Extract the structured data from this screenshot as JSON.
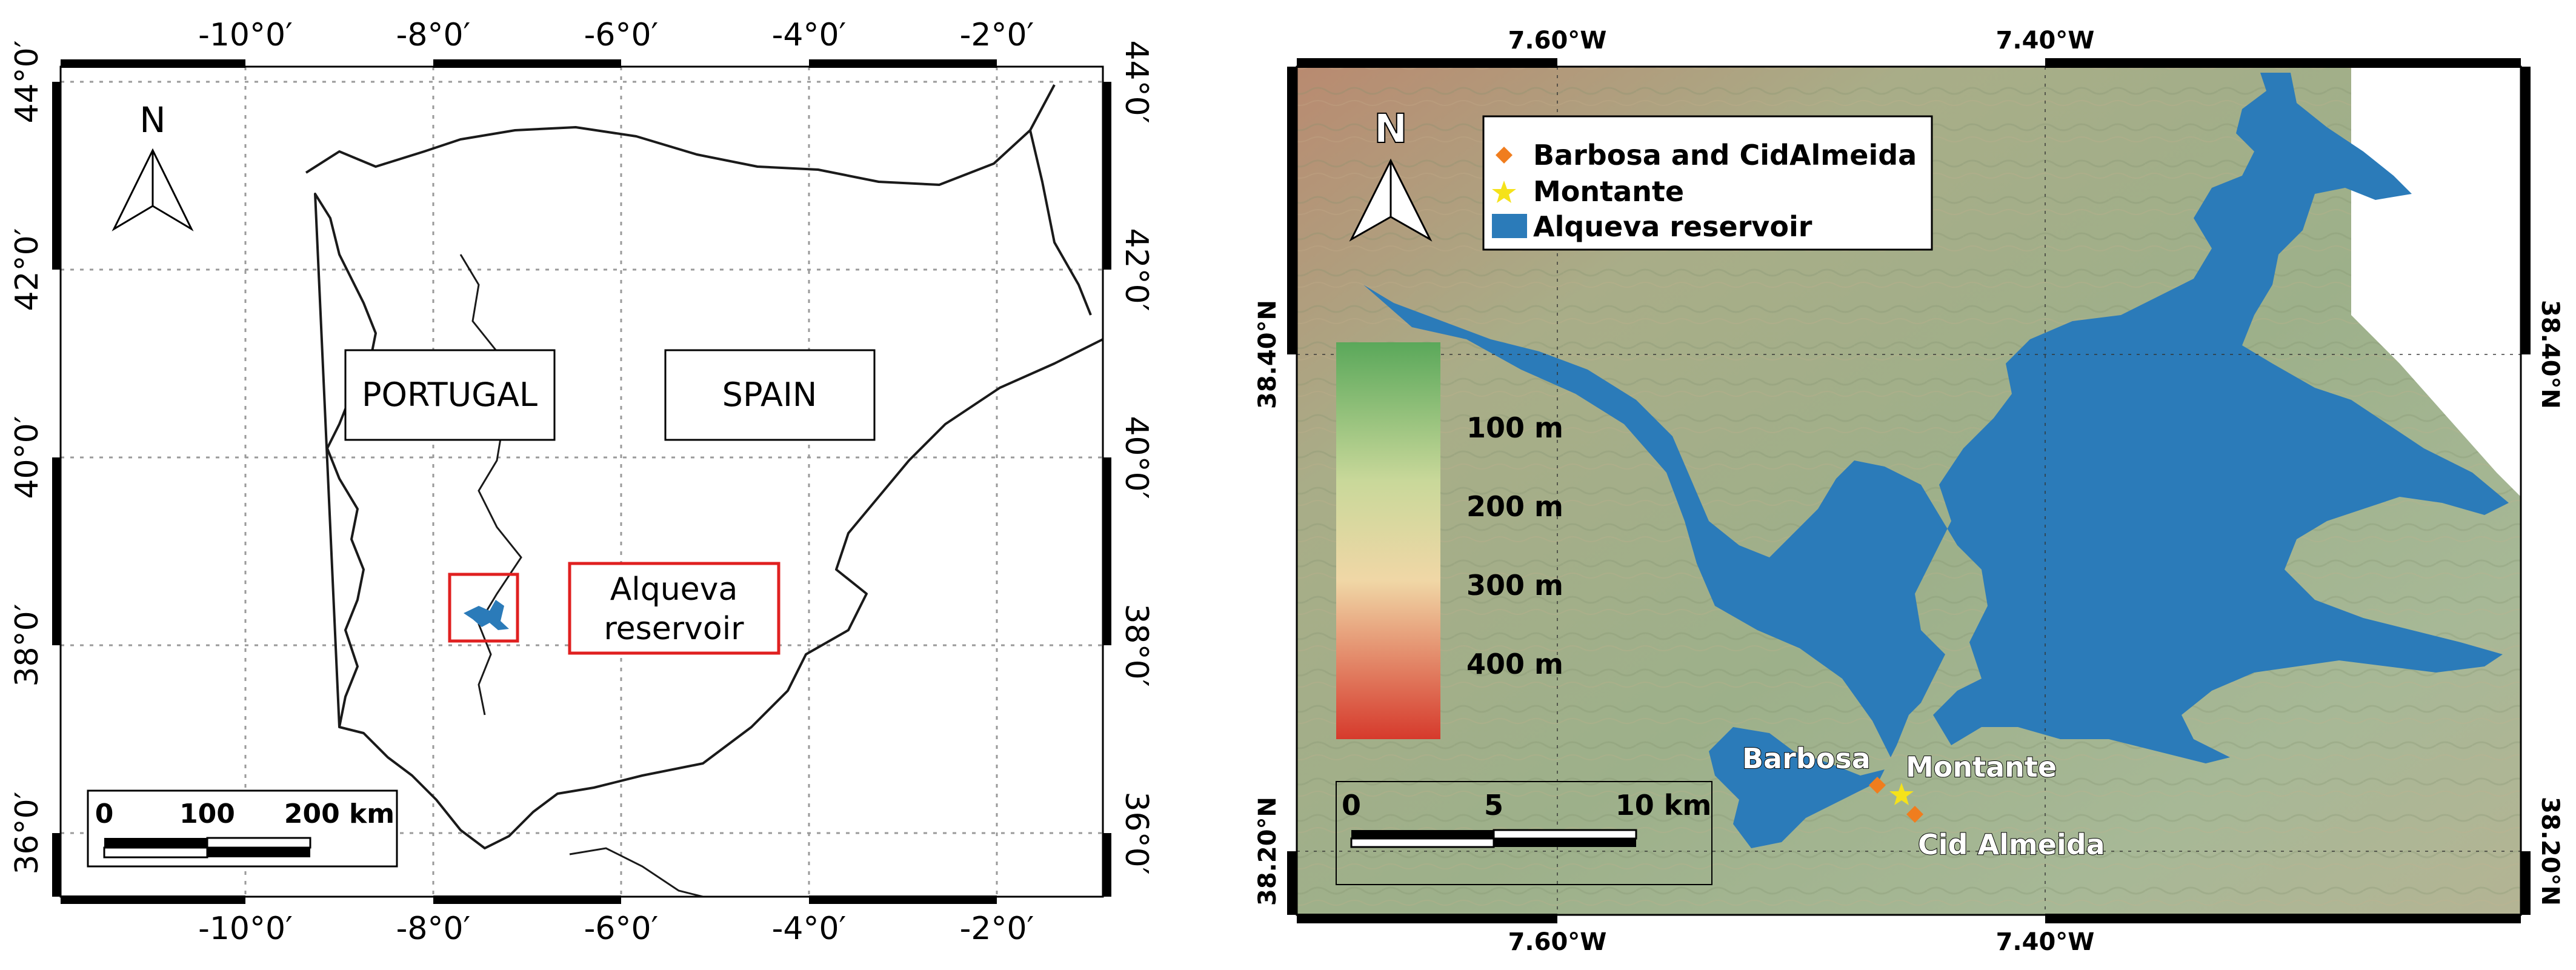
{
  "left_map": {
    "ticks_x_top": [
      "-10°0′",
      "-8°0′",
      "-6°0′",
      "-4°0′",
      "-2°0′"
    ],
    "ticks_x_bottom": [
      "-10°0′",
      "-8°0′",
      "-6°0′",
      "-4°0′",
      "-2°0′"
    ],
    "ticks_y_left": [
      "44°0′",
      "42°0′",
      "40°0′",
      "38°0′",
      "36°0′"
    ],
    "ticks_y_right": [
      "44°0′",
      "42°0′",
      "40°0′",
      "38°0′",
      "36°0′"
    ],
    "north_label": "N",
    "country_labels": [
      "PORTUGAL",
      "SPAIN"
    ],
    "inset_label_line1": "Alqueva",
    "inset_label_line2": "reservoir",
    "scalebar_labels": [
      "0",
      "100",
      "200 km"
    ],
    "colors": {
      "frame": "#000000",
      "outline": "#1a1a1a",
      "highlight": "#e02020",
      "reservoir": "#2b7bb9"
    }
  },
  "right_map": {
    "ticks_x_top": [
      "7.60°W",
      "7.40°W"
    ],
    "ticks_x_bottom": [
      "7.60°W",
      "7.40°W"
    ],
    "ticks_y_left": [
      "38.40°N",
      "38.20°N"
    ],
    "ticks_y_right": [
      "38.40°N",
      "38.20°N"
    ],
    "north_label": "N",
    "legend": [
      {
        "symbol": "diamond",
        "color": "#f07d1e",
        "label": "Barbosa and CidAlmeida"
      },
      {
        "symbol": "star",
        "color": "#f5e21a",
        "label": "Montante"
      },
      {
        "symbol": "rect",
        "color": "#2b7bb9",
        "label": "Alqueva reservoir"
      }
    ],
    "elevation_labels": [
      "100 m",
      "200 m",
      "300 m",
      "400 m"
    ],
    "site_labels": [
      "Barbosa",
      "Montante",
      "Cid Almeida"
    ],
    "scalebar_labels": [
      "0",
      "5",
      "10 km"
    ],
    "colors": {
      "reservoir": "#2b7bb9",
      "terrain_low": "#6fae6a",
      "terrain_mid": "#e8d6a6",
      "terrain_high": "#d2534a"
    }
  }
}
